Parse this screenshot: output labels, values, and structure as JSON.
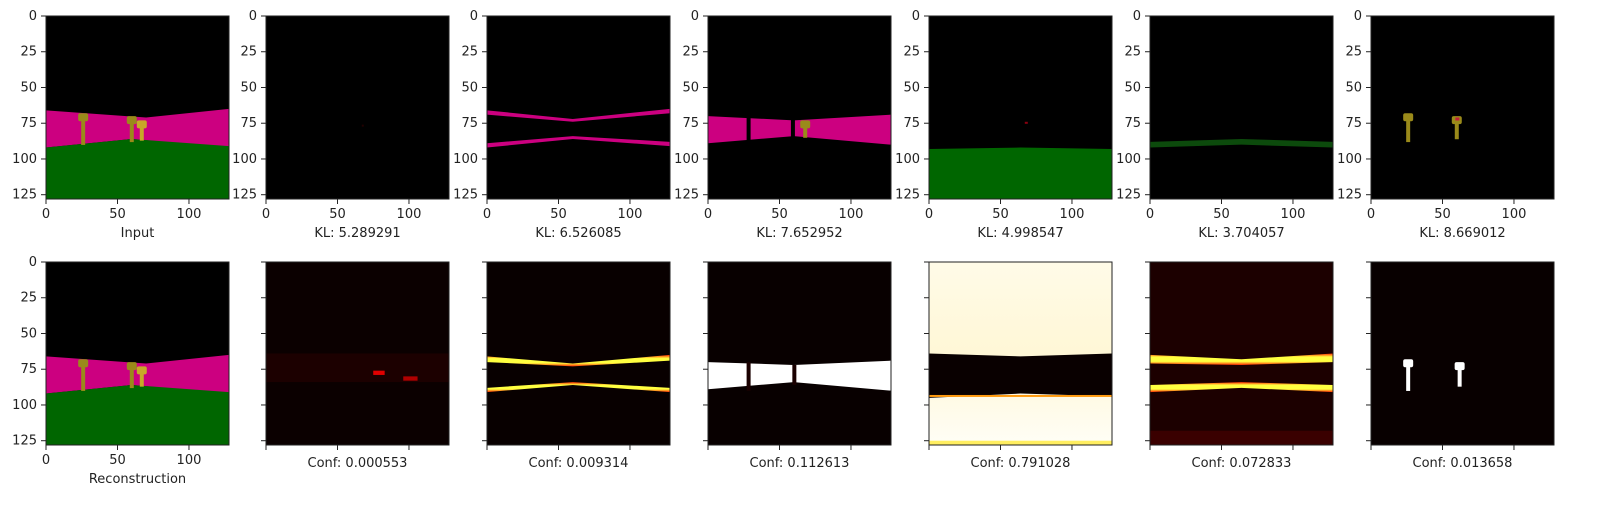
{
  "chart_data": {
    "type": "heatmap",
    "image_extent": [
      0,
      128
    ],
    "x_ticks": [
      0,
      50,
      100
    ],
    "y_ticks": [
      0,
      25,
      50,
      75,
      100,
      125
    ],
    "colors": {
      "sky": "#000000",
      "wall": "#cc0080",
      "grass": "#006600",
      "key": "#9a8a1a",
      "key_light": "#c8a828"
    },
    "top_row": [
      {
        "label": "Input",
        "content": "scene-full",
        "axis_labels": true
      },
      {
        "label": "KL: 5.289291",
        "content": "empty",
        "axis_labels": false
      },
      {
        "label": "KL: 6.526085",
        "content": "wall-edges",
        "axis_labels": false
      },
      {
        "label": "KL: 7.652952",
        "content": "wall-band",
        "axis_labels": false
      },
      {
        "label": "KL: 4.998547",
        "content": "grass",
        "axis_labels": false
      },
      {
        "label": "KL: 3.704057",
        "content": "grass-faint",
        "axis_labels": false
      },
      {
        "label": "KL: 8.669012",
        "content": "keys",
        "axis_labels": false
      }
    ],
    "bottom_row": [
      {
        "label": "Reconstruction",
        "content": "scene-full",
        "axis_labels": true
      },
      {
        "label": "Conf: 0.000553",
        "content": "mask-empty",
        "axis_labels": false
      },
      {
        "label": "Conf: 0.009314",
        "content": "mask-edges",
        "axis_labels": false
      },
      {
        "label": "Conf: 0.112613",
        "content": "mask-band",
        "axis_labels": false
      },
      {
        "label": "Conf: 0.791028",
        "content": "mask-sky-grass",
        "axis_labels": false
      },
      {
        "label": "Conf: 0.072833",
        "content": "mask-lines",
        "axis_labels": false
      },
      {
        "label": "Conf: 0.013658",
        "content": "mask-keys",
        "axis_labels": false
      }
    ]
  }
}
